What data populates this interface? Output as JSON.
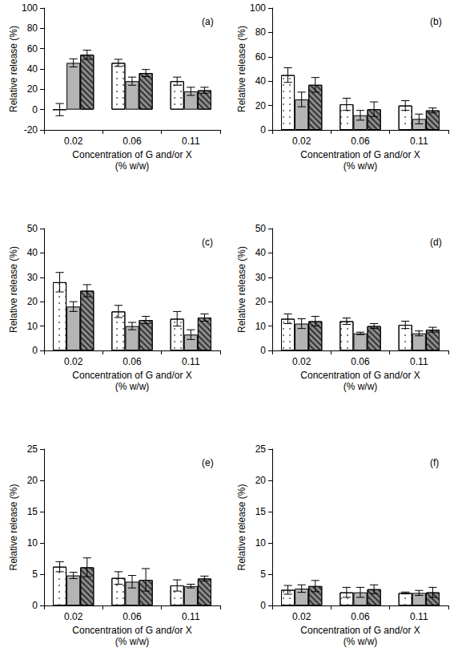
{
  "chart_data": [
    {
      "type": "bar",
      "title": "(a)",
      "x_label": "Concentration of G and/or X\n(% w/w)",
      "y_label": "Relative release (%)",
      "categories": [
        "0.02",
        "0.06",
        "0.11"
      ],
      "ylim": [
        -20,
        100
      ],
      "yticks": [
        -20,
        0,
        20,
        40,
        60,
        80,
        100
      ],
      "series": [
        {
          "color": "#ffffff",
          "values": [
            0,
            46,
            28
          ],
          "errors": [
            6,
            3.5,
            4
          ]
        },
        {
          "color": "#b4b4b4",
          "values": [
            46,
            28,
            18
          ],
          "errors": [
            4,
            4,
            4
          ]
        },
        {
          "color": "#8c8c8c",
          "values": [
            54,
            36,
            19
          ],
          "errors": [
            4.5,
            3.5,
            3
          ]
        }
      ]
    },
    {
      "type": "bar",
      "title": "(b)",
      "x_label": "Concentration of G and/or X\n(% w/w)",
      "y_label": "Relative release (%)",
      "categories": [
        "0.02",
        "0.06",
        "0.11"
      ],
      "ylim": [
        0,
        100
      ],
      "yticks": [
        0,
        20,
        40,
        60,
        80,
        100
      ],
      "series": [
        {
          "color": "#ffffff",
          "values": [
            45,
            21,
            20
          ],
          "errors": [
            6,
            5,
            4
          ]
        },
        {
          "color": "#b4b4b4",
          "values": [
            25,
            12,
            9
          ],
          "errors": [
            6,
            4,
            4
          ]
        },
        {
          "color": "#8c8c8c",
          "values": [
            37,
            17,
            16
          ],
          "errors": [
            6,
            6,
            2
          ]
        }
      ]
    },
    {
      "type": "bar",
      "title": "(c)",
      "x_label": "Concentration of G and/or X\n(% w/w)",
      "y_label": "Relative release (%)",
      "categories": [
        "0.02",
        "0.06",
        "0.11"
      ],
      "ylim": [
        0,
        50
      ],
      "yticks": [
        0,
        10,
        20,
        30,
        40,
        50
      ],
      "series": [
        {
          "color": "#ffffff",
          "values": [
            28,
            16,
            13
          ],
          "errors": [
            4,
            2.5,
            3
          ]
        },
        {
          "color": "#b4b4b4",
          "values": [
            18,
            10,
            6.5
          ],
          "errors": [
            2,
            1.5,
            2
          ]
        },
        {
          "color": "#8c8c8c",
          "values": [
            24.5,
            12.5,
            13.5
          ],
          "errors": [
            2.5,
            1.5,
            1.5
          ]
        }
      ]
    },
    {
      "type": "bar",
      "title": "(d)",
      "x_label": "Concentration of G and/or X\n(% w/w)",
      "y_label": "Relative release (%)",
      "categories": [
        "0.02",
        "0.06",
        "0.11"
      ],
      "ylim": [
        0,
        50
      ],
      "yticks": [
        0,
        10,
        20,
        30,
        40,
        50
      ],
      "series": [
        {
          "color": "#ffffff",
          "values": [
            13,
            12,
            10.5
          ],
          "errors": [
            2,
            1.3,
            1.5
          ]
        },
        {
          "color": "#b4b4b4",
          "values": [
            11,
            7,
            7
          ],
          "errors": [
            2,
            0.5,
            1
          ]
        },
        {
          "color": "#8c8c8c",
          "values": [
            12,
            10,
            8.5
          ],
          "errors": [
            2,
            1,
            1
          ]
        }
      ]
    },
    {
      "type": "bar",
      "title": "(e)",
      "x_label": "Concentration of G and/or X\n(% w/w)",
      "y_label": "Relative release (%)",
      "categories": [
        "0.02",
        "0.06",
        "0.11"
      ],
      "ylim": [
        0,
        25
      ],
      "yticks": [
        0,
        5,
        10,
        15,
        20,
        25
      ],
      "series": [
        {
          "color": "#ffffff",
          "values": [
            6.2,
            4.4,
            3.2
          ],
          "errors": [
            0.8,
            1,
            0.9
          ]
        },
        {
          "color": "#b4b4b4",
          "values": [
            4.8,
            3.8,
            3.1
          ],
          "errors": [
            0.5,
            1,
            0.3
          ]
        },
        {
          "color": "#8c8c8c",
          "values": [
            6.1,
            4.1,
            4.3
          ],
          "errors": [
            1.5,
            1.8,
            0.4
          ]
        }
      ]
    },
    {
      "type": "bar",
      "title": "(f)",
      "x_label": "Concentration of G and/or X\n(% w/w)",
      "y_label": "Relative release (%)",
      "categories": [
        "0.02",
        "0.06",
        "0.11"
      ],
      "ylim": [
        0,
        25
      ],
      "yticks": [
        0,
        5,
        10,
        15,
        20,
        25
      ],
      "series": [
        {
          "color": "#ffffff",
          "values": [
            2.5,
            2.1,
            2.0
          ],
          "errors": [
            0.7,
            0.8,
            0.15
          ]
        },
        {
          "color": "#b4b4b4",
          "values": [
            2.7,
            2.1,
            2.0
          ],
          "errors": [
            0.6,
            0.8,
            0.4
          ]
        },
        {
          "color": "#8c8c8c",
          "values": [
            3.1,
            2.6,
            2.1
          ],
          "errors": [
            0.9,
            0.7,
            0.8
          ]
        }
      ]
    }
  ]
}
